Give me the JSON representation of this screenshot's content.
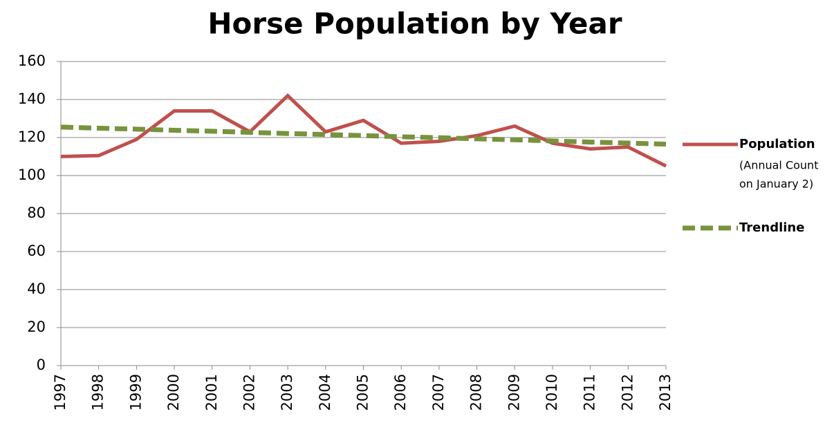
{
  "chart_data": {
    "type": "line",
    "title": "Horse Population by Year",
    "x": [
      1997,
      1998,
      1999,
      2000,
      2001,
      2002,
      2003,
      2004,
      2005,
      2006,
      2007,
      2008,
      2009,
      2010,
      2011,
      2012,
      2013
    ],
    "xlim": [
      1997,
      2013
    ],
    "xticks": [
      1997,
      1998,
      1999,
      2000,
      2001,
      2002,
      2003,
      2004,
      2005,
      2006,
      2007,
      2008,
      2009,
      2010,
      2011,
      2012,
      2013
    ],
    "ylim": [
      0,
      160
    ],
    "yticks": [
      0,
      20,
      40,
      60,
      80,
      100,
      120,
      140,
      160
    ],
    "grid": true,
    "legend": "right",
    "series": [
      {
        "name": "Population",
        "description": [
          "(Annual Count",
          "on January 2)"
        ],
        "color": "#c0504d",
        "dashed": false,
        "values": [
          110,
          110.5,
          119,
          134,
          134,
          123,
          142,
          123,
          129,
          117,
          118,
          121,
          126,
          117,
          114,
          115,
          105
        ]
      },
      {
        "name": "Trendline",
        "color": "#77933c",
        "dashed": true,
        "values": [
          125.5,
          124.9,
          124.4,
          123.8,
          123.3,
          122.7,
          122.1,
          121.6,
          121,
          120.4,
          119.9,
          119.3,
          118.8,
          118.2,
          117.6,
          117.1,
          116.5
        ]
      }
    ]
  }
}
